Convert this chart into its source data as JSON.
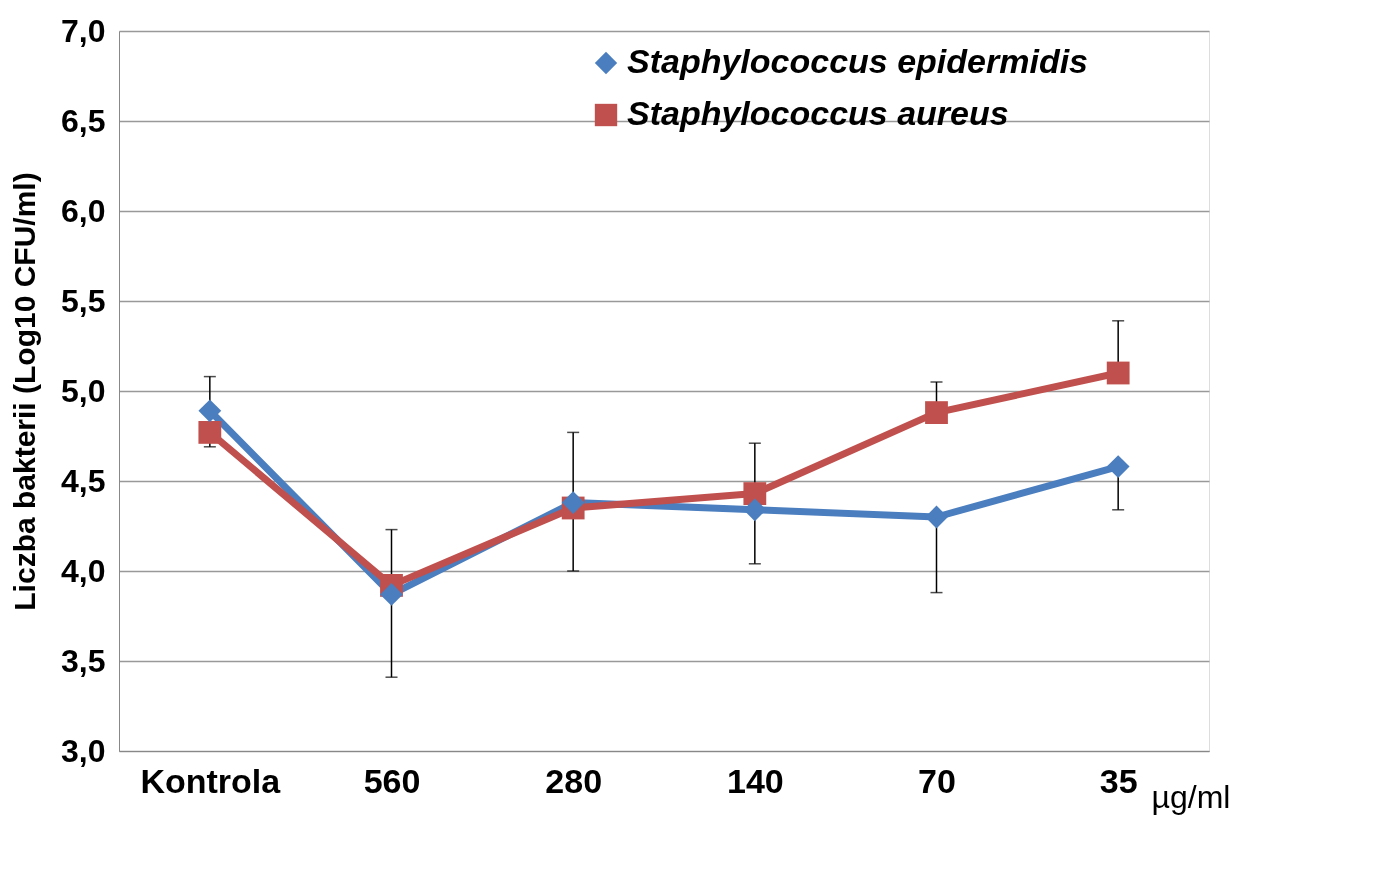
{
  "chart_data": {
    "type": "line",
    "ylabel": "Liczba bakterii (Log10 CFU/ml)",
    "xlabel": "µg/ml",
    "categories": [
      "Kontrola",
      "560",
      "280",
      "140",
      "70",
      "35"
    ],
    "series": [
      {
        "name": "Staphylococcus epidermidis",
        "color": "#4a7ebf",
        "marker": "diamond",
        "values": [
          4.89,
          3.87,
          4.38,
          4.34,
          4.3,
          4.58
        ],
        "errors": [
          [
            4.89,
            5.08
          ],
          [
            3.41,
            3.87
          ],
          null,
          null,
          [
            3.88,
            4.3
          ],
          [
            4.34,
            4.58
          ]
        ]
      },
      {
        "name": "Staphylococcus aureus",
        "color": "#c0504d",
        "marker": "square",
        "values": [
          4.77,
          3.92,
          4.35,
          4.43,
          4.88,
          5.1
        ],
        "errors": [
          [
            4.69,
            4.77
          ],
          [
            3.92,
            4.23
          ],
          [
            4.0,
            4.77
          ],
          [
            4.04,
            4.71
          ],
          [
            4.88,
            5.05
          ],
          [
            5.1,
            5.39
          ]
        ]
      }
    ],
    "ylim": [
      3.0,
      7.0
    ],
    "yticks": [
      {
        "value": 3.0,
        "label": "3,0"
      },
      {
        "value": 3.5,
        "label": "3,5"
      },
      {
        "value": 4.0,
        "label": "4,0"
      },
      {
        "value": 4.5,
        "label": "4,5"
      },
      {
        "value": 5.0,
        "label": "5,0"
      },
      {
        "value": 5.5,
        "label": "5,5"
      },
      {
        "value": 6.0,
        "label": "6,0"
      },
      {
        "value": 6.5,
        "label": "6,5"
      },
      {
        "value": 7.0,
        "label": "7,0"
      }
    ],
    "grid": "y",
    "legend": "top right",
    "line_style": "solid"
  }
}
